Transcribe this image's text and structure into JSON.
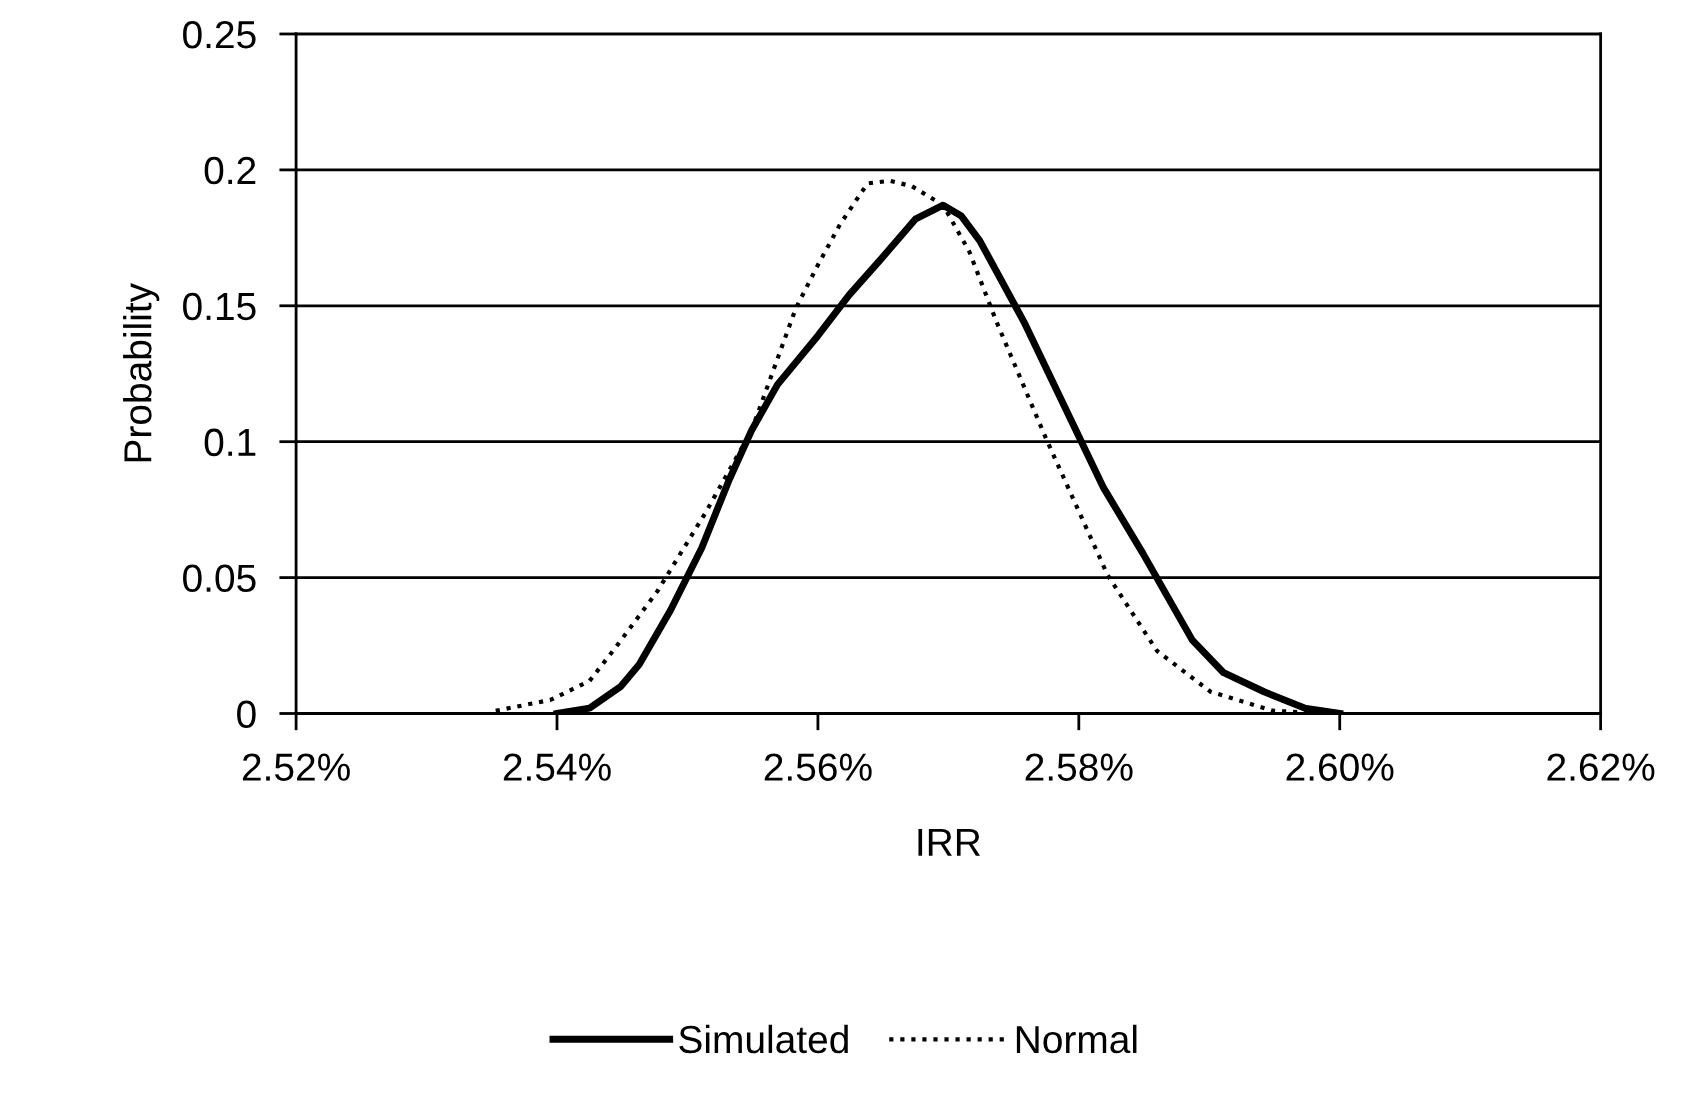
{
  "chart_data": {
    "type": "line",
    "xlabel": "IRR",
    "ylabel": "Probability",
    "xlim": [
      2.52,
      2.62
    ],
    "xticks": [
      {
        "value": 2.52,
        "label": "2.52%"
      },
      {
        "value": 2.54,
        "label": "2.54%"
      },
      {
        "value": 2.56,
        "label": "2.56%"
      },
      {
        "value": 2.58,
        "label": "2.58%"
      },
      {
        "value": 2.6,
        "label": "2.60%"
      },
      {
        "value": 2.62,
        "label": "2.62%"
      }
    ],
    "ylim": [
      0,
      0.25
    ],
    "yticks": [
      0,
      0.05,
      0.1,
      0.15,
      0.2,
      0.25
    ],
    "grid": "y",
    "legend": "bottom",
    "marker": "none",
    "series": [
      {
        "name": "Simulated",
        "color": "#000000",
        "line_style": "solid",
        "x": [
          2.54,
          2.5425,
          2.5449,
          2.5463,
          2.5487,
          2.5511,
          2.5532,
          2.5549,
          2.5569,
          2.56,
          2.5624,
          2.5648,
          2.5675,
          2.5696,
          2.571,
          2.5724,
          2.5758,
          2.5785,
          2.5819,
          2.5849,
          2.5887,
          2.5911,
          2.5942,
          2.5973,
          2.6
        ],
        "values": [
          0,
          0.002,
          0.01,
          0.018,
          0.038,
          0.061,
          0.086,
          0.104,
          0.121,
          0.139,
          0.154,
          0.167,
          0.182,
          0.187,
          0.183,
          0.174,
          0.144,
          0.117,
          0.083,
          0.059,
          0.027,
          0.015,
          0.008,
          0.002,
          0
        ]
      },
      {
        "name": "Normal",
        "color": "#000000",
        "line_style": "dotted",
        "x": [
          2.5353,
          2.5395,
          2.5425,
          2.5446,
          2.5477,
          2.5514,
          2.5549,
          2.5583,
          2.56,
          2.5617,
          2.5638,
          2.5655,
          2.5672,
          2.5696,
          2.5716,
          2.5737,
          2.5775,
          2.5822,
          2.586,
          2.5901,
          2.5949,
          2.599
        ],
        "values": [
          0.001,
          0.005,
          0.012,
          0.025,
          0.045,
          0.074,
          0.104,
          0.149,
          0.165,
          0.18,
          0.195,
          0.196,
          0.194,
          0.187,
          0.17,
          0.144,
          0.101,
          0.051,
          0.023,
          0.008,
          0.001,
          0
        ]
      }
    ]
  }
}
